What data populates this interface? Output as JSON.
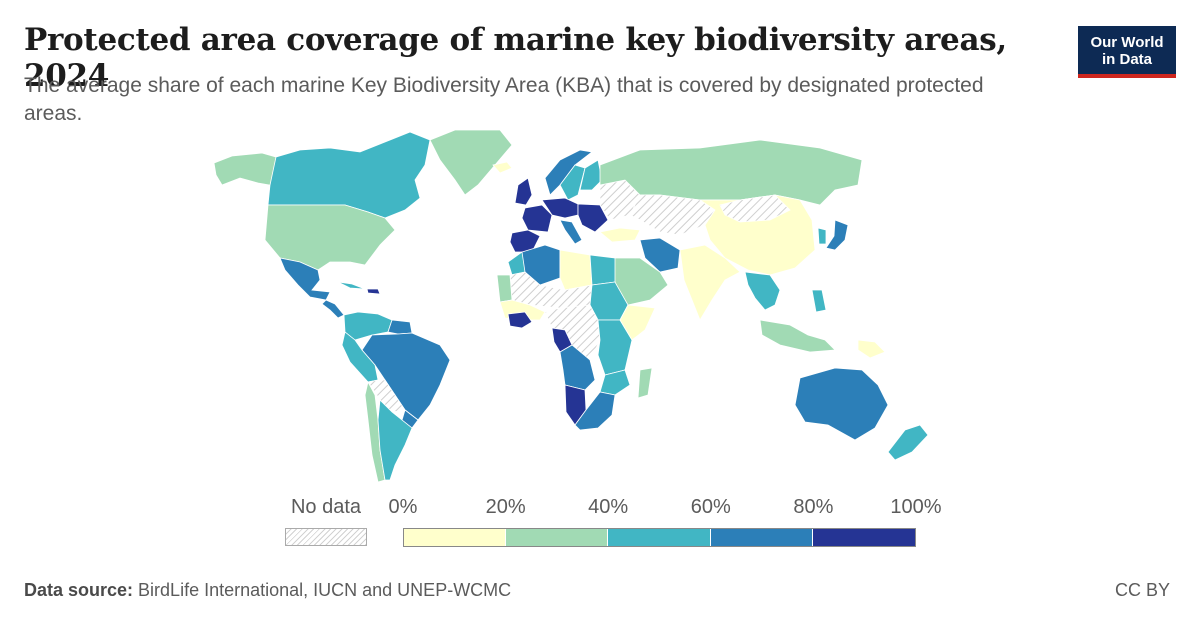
{
  "header": {
    "title": "Protected area coverage of marine key biodiversity areas, 2024",
    "subtitle": "The average share of each marine Key Biodiversity Area (KBA) that is covered by designated protected areas."
  },
  "logo": {
    "line1": "Our World",
    "line2": "in Data"
  },
  "legend": {
    "no_data_label": "No data",
    "ticks": [
      "0%",
      "20%",
      "40%",
      "60%",
      "80%",
      "100%"
    ],
    "bins": [
      {
        "range": "0-20",
        "color": "#ffffcc"
      },
      {
        "range": "20-40",
        "color": "#a1dab4"
      },
      {
        "range": "40-60",
        "color": "#41b6c4"
      },
      {
        "range": "60-80",
        "color": "#2c7fb8"
      },
      {
        "range": "80-100",
        "color": "#253494"
      }
    ],
    "no_data_color": "#e8e8e8"
  },
  "footer": {
    "source_label": "Data source:",
    "source_text": " BirdLife International, IUCN and UNEP-WCMC",
    "license": "CC BY"
  },
  "map": {
    "regions": [
      {
        "name": "Alaska",
        "bin": 1
      },
      {
        "name": "Canada",
        "bin": 2
      },
      {
        "name": "United States",
        "bin": 1
      },
      {
        "name": "Greenland",
        "bin": 1
      },
      {
        "name": "Mexico",
        "bin": 3
      },
      {
        "name": "Central America",
        "bin": 3
      },
      {
        "name": "Cuba",
        "bin": 2
      },
      {
        "name": "Hispaniola",
        "bin": 4
      },
      {
        "name": "Colombia-Venezuela",
        "bin": 2
      },
      {
        "name": "Guianas",
        "bin": 3
      },
      {
        "name": "Brazil",
        "bin": 3
      },
      {
        "name": "Peru-Ecuador",
        "bin": 2
      },
      {
        "name": "Bolivia-Paraguay",
        "bin": "nodata"
      },
      {
        "name": "Uruguay",
        "bin": 3
      },
      {
        "name": "Chile",
        "bin": 1
      },
      {
        "name": "Argentina",
        "bin": 2
      },
      {
        "name": "Iceland",
        "bin": 0
      },
      {
        "name": "United Kingdom",
        "bin": 4
      },
      {
        "name": "Norway",
        "bin": 3
      },
      {
        "name": "Sweden",
        "bin": 2
      },
      {
        "name": "Finland",
        "bin": 2
      },
      {
        "name": "France",
        "bin": 4
      },
      {
        "name": "Iberia",
        "bin": 4
      },
      {
        "name": "Central Europe",
        "bin": 4
      },
      {
        "name": "Italy",
        "bin": 3
      },
      {
        "name": "Balkans",
        "bin": 4
      },
      {
        "name": "Eastern Europe",
        "bin": "nodata"
      },
      {
        "name": "Russia",
        "bin": 1
      },
      {
        "name": "Kazakhstan-Central Asia",
        "bin": "nodata"
      },
      {
        "name": "Turkey",
        "bin": 0
      },
      {
        "name": "Iran",
        "bin": 3
      },
      {
        "name": "Arabian Peninsula",
        "bin": 1
      },
      {
        "name": "China",
        "bin": 0
      },
      {
        "name": "Mongolia",
        "bin": "nodata"
      },
      {
        "name": "Korea",
        "bin": 2
      },
      {
        "name": "Japan",
        "bin": 3
      },
      {
        "name": "India",
        "bin": 0
      },
      {
        "name": "Mainland Southeast Asia",
        "bin": 2
      },
      {
        "name": "Philippines",
        "bin": 2
      },
      {
        "name": "Indonesia",
        "bin": 1
      },
      {
        "name": "Papua New Guinea",
        "bin": 0
      },
      {
        "name": "Australia",
        "bin": 3
      },
      {
        "name": "New Zealand",
        "bin": 2
      },
      {
        "name": "Morocco",
        "bin": 2
      },
      {
        "name": "Algeria",
        "bin": 3
      },
      {
        "name": "Libya",
        "bin": 0
      },
      {
        "name": "Egypt",
        "bin": 2
      },
      {
        "name": "Sahel-Sahara",
        "bin": "nodata"
      },
      {
        "name": "Sudan",
        "bin": 2
      },
      {
        "name": "Mauritania-Senegal",
        "bin": 1
      },
      {
        "name": "West Africa",
        "bin": 0
      },
      {
        "name": "Cote d'Ivoire-Ghana",
        "bin": 4
      },
      {
        "name": "Central Africa",
        "bin": "nodata"
      },
      {
        "name": "Gabon-Congo",
        "bin": 4
      },
      {
        "name": "East Africa",
        "bin": 2
      },
      {
        "name": "Somalia",
        "bin": 0
      },
      {
        "name": "Angola",
        "bin": 3
      },
      {
        "name": "Namibia",
        "bin": 4
      },
      {
        "name": "Mozambique",
        "bin": 2
      },
      {
        "name": "South Africa",
        "bin": 3
      },
      {
        "name": "Madagascar",
        "bin": 1
      }
    ]
  }
}
